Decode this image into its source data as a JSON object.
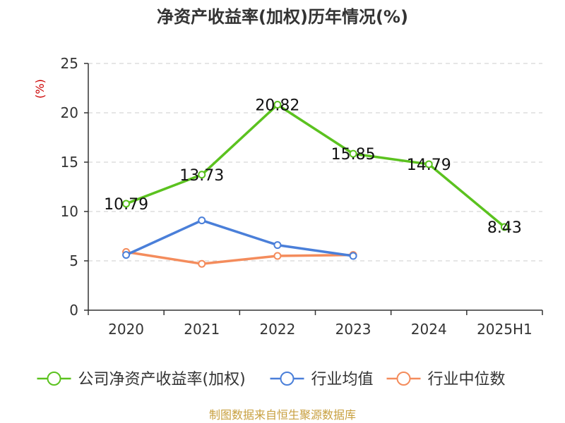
{
  "chart_data": {
    "type": "line",
    "title": "净资产收益率(加权)历年情况(%)",
    "ylabel": "(%)",
    "ylim": [
      0,
      25
    ],
    "yticks": [
      0,
      5,
      10,
      15,
      20,
      25
    ],
    "categories": [
      "2020",
      "2021",
      "2022",
      "2023",
      "2024",
      "2025H1"
    ],
    "grid": true,
    "legend_position": "bottom",
    "series": [
      {
        "name": "公司净资产收益率(加权)",
        "color": "#5bc21f",
        "values": [
          10.79,
          13.73,
          20.82,
          15.85,
          14.79,
          8.43
        ],
        "labels": [
          "10.79",
          "13.73",
          "20.82",
          "15.85",
          "14.79",
          "8.43"
        ]
      },
      {
        "name": "行业均值",
        "color": "#4a7fd9",
        "values": [
          5.6,
          9.1,
          6.6,
          5.5,
          null,
          null
        ]
      },
      {
        "name": "行业中位数",
        "color": "#f48c5c",
        "values": [
          5.9,
          4.7,
          5.5,
          5.6,
          null,
          null
        ]
      }
    ]
  },
  "footer": {
    "source": "制图数据来自恒生聚源数据库"
  }
}
